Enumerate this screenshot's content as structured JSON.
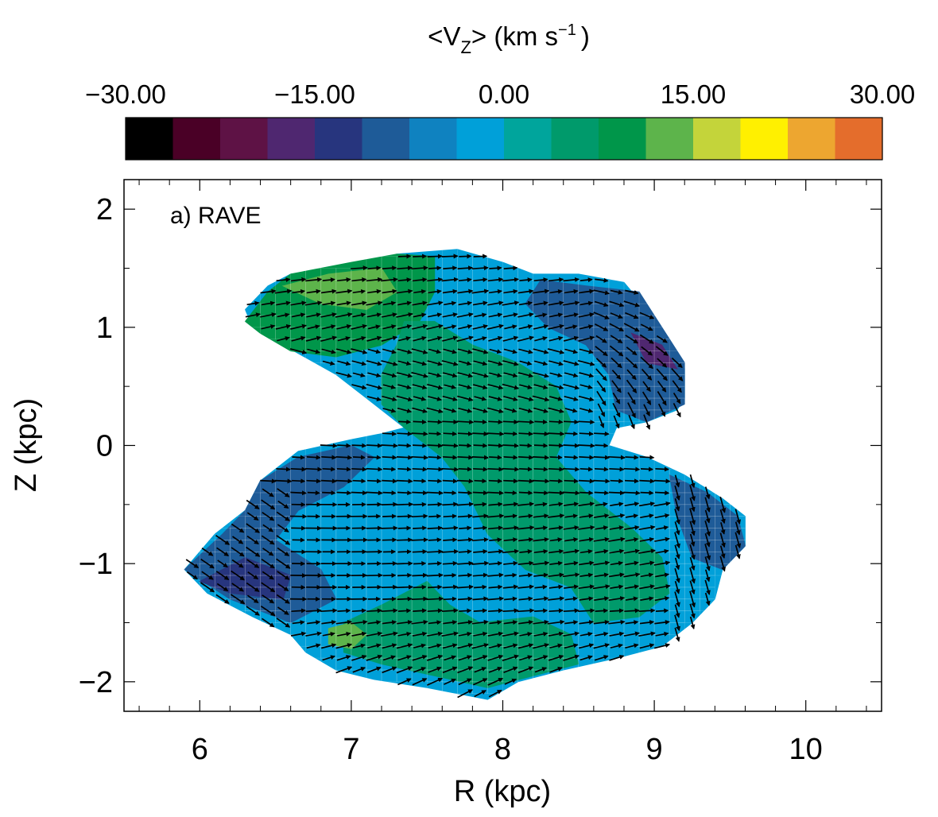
{
  "chart_data": {
    "type": "heatmap",
    "title": "",
    "panel_label": "a) RAVE",
    "xlabel": "R (kpc)",
    "ylabel": "Z (kpc)",
    "xlim": [
      5.5,
      10.5
    ],
    "ylim": [
      -2.25,
      2.25
    ],
    "xticks": [
      6,
      7,
      8,
      9,
      10
    ],
    "xtick_labels": [
      "6",
      "7",
      "8",
      "9",
      "10"
    ],
    "yticks": [
      2,
      1,
      0,
      -1,
      -2
    ],
    "ytick_labels": [
      "2",
      "1",
      "0",
      "−1",
      "−2"
    ],
    "colorbar": {
      "label_main": "<V",
      "label_sub": "Z",
      "label_rest": "> (km s",
      "label_sup": "−1",
      "label_close": ")",
      "vmin": -30,
      "vmax": 30,
      "tick_values": [
        -30,
        -15,
        0,
        15,
        30
      ],
      "tick_labels": [
        "−30.00",
        "−15.00",
        "0.00",
        "15.00",
        "30.00"
      ],
      "colors": [
        "#000000",
        "#4a0026",
        "#5e1245",
        "#4f2770",
        "#27357e",
        "#1e5b98",
        "#0f82c0",
        "#00a0d9",
        "#00a59c",
        "#009a6b",
        "#00964a",
        "#5db44b",
        "#c4d43a",
        "#fff000",
        "#eda630",
        "#e46d2c"
      ]
    },
    "grid": false,
    "arrow_field": "mean velocity vectors (V_R, V_Z) on a 0.1 kpc grid; arrows mostly point to +R with tilts varying by region",
    "regions": [
      {
        "name": "envelope",
        "value": -2,
        "polygon": [
          [
            6.3,
            1.15
          ],
          [
            6.45,
            1.35
          ],
          [
            6.6,
            1.45
          ],
          [
            7.0,
            1.5
          ],
          [
            7.3,
            1.62
          ],
          [
            7.7,
            1.66
          ],
          [
            8.0,
            1.55
          ],
          [
            8.2,
            1.45
          ],
          [
            8.5,
            1.45
          ],
          [
            8.8,
            1.38
          ],
          [
            8.95,
            1.15
          ],
          [
            9.1,
            0.9
          ],
          [
            9.2,
            0.65
          ],
          [
            9.2,
            0.4
          ],
          [
            9.15,
            0.3
          ],
          [
            8.95,
            0.2
          ],
          [
            8.75,
            0.15
          ],
          [
            8.7,
            0.0
          ],
          [
            8.95,
            -0.1
          ],
          [
            9.2,
            -0.25
          ],
          [
            9.45,
            -0.45
          ],
          [
            9.6,
            -0.6
          ],
          [
            9.6,
            -0.85
          ],
          [
            9.45,
            -1.05
          ],
          [
            9.4,
            -1.3
          ],
          [
            9.25,
            -1.5
          ],
          [
            9.05,
            -1.7
          ],
          [
            8.75,
            -1.8
          ],
          [
            8.4,
            -1.9
          ],
          [
            8.1,
            -2.0
          ],
          [
            7.9,
            -2.15
          ],
          [
            7.5,
            -2.05
          ],
          [
            7.15,
            -1.98
          ],
          [
            6.9,
            -1.9
          ],
          [
            6.7,
            -1.75
          ],
          [
            6.6,
            -1.6
          ],
          [
            6.35,
            -1.45
          ],
          [
            6.05,
            -1.25
          ],
          [
            5.9,
            -1.05
          ],
          [
            6.1,
            -0.75
          ],
          [
            6.3,
            -0.55
          ],
          [
            6.4,
            -0.3
          ],
          [
            6.65,
            -0.05
          ],
          [
            7.0,
            0.05
          ],
          [
            7.2,
            0.1
          ],
          [
            7.35,
            0.15
          ],
          [
            7.1,
            0.4
          ],
          [
            6.9,
            0.6
          ],
          [
            6.55,
            0.85
          ],
          [
            6.35,
            1.0
          ]
        ]
      },
      {
        "name": "upper-left-green",
        "value": 8,
        "polygon": [
          [
            6.3,
            1.05
          ],
          [
            6.45,
            1.3
          ],
          [
            6.6,
            1.45
          ],
          [
            7.0,
            1.55
          ],
          [
            7.3,
            1.62
          ],
          [
            7.55,
            1.6
          ],
          [
            7.55,
            1.3
          ],
          [
            7.45,
            1.05
          ],
          [
            7.2,
            0.85
          ],
          [
            6.9,
            0.75
          ],
          [
            6.6,
            0.8
          ],
          [
            6.4,
            0.95
          ]
        ]
      },
      {
        "name": "upper-left-darkgreen",
        "value": 12,
        "polygon": [
          [
            6.55,
            1.35
          ],
          [
            6.85,
            1.45
          ],
          [
            7.2,
            1.5
          ],
          [
            7.3,
            1.3
          ],
          [
            7.1,
            1.15
          ],
          [
            6.8,
            1.2
          ]
        ]
      },
      {
        "name": "central-green-band",
        "value": 6,
        "polygon": [
          [
            7.35,
            1.05
          ],
          [
            7.55,
            1.05
          ],
          [
            7.8,
            0.85
          ],
          [
            8.1,
            0.7
          ],
          [
            8.35,
            0.5
          ],
          [
            8.45,
            0.2
          ],
          [
            8.35,
            -0.1
          ],
          [
            8.55,
            -0.4
          ],
          [
            8.85,
            -0.7
          ],
          [
            9.05,
            -0.95
          ],
          [
            9.1,
            -1.25
          ],
          [
            8.9,
            -1.45
          ],
          [
            8.6,
            -1.5
          ],
          [
            8.45,
            -1.2
          ],
          [
            8.15,
            -1.05
          ],
          [
            7.9,
            -0.75
          ],
          [
            7.75,
            -0.35
          ],
          [
            7.6,
            -0.1
          ],
          [
            7.35,
            0.15
          ],
          [
            7.2,
            0.35
          ],
          [
            7.2,
            0.6
          ],
          [
            7.3,
            0.85
          ]
        ]
      },
      {
        "name": "lower-green-blob",
        "value": 7,
        "polygon": [
          [
            6.95,
            -1.5
          ],
          [
            7.2,
            -1.35
          ],
          [
            7.5,
            -1.15
          ],
          [
            7.65,
            -1.35
          ],
          [
            7.85,
            -1.5
          ],
          [
            8.2,
            -1.45
          ],
          [
            8.45,
            -1.6
          ],
          [
            8.5,
            -1.85
          ],
          [
            8.2,
            -1.95
          ],
          [
            7.9,
            -2.05
          ],
          [
            7.55,
            -1.95
          ],
          [
            7.2,
            -1.85
          ],
          [
            6.95,
            -1.75
          ]
        ]
      },
      {
        "name": "lower-darkgreen-spot",
        "value": 12,
        "polygon": [
          [
            6.85,
            -1.55
          ],
          [
            7.0,
            -1.5
          ],
          [
            7.1,
            -1.6
          ],
          [
            7.0,
            -1.72
          ],
          [
            6.85,
            -1.68
          ]
        ]
      },
      {
        "name": "upper-right-blue",
        "value": -11,
        "polygon": [
          [
            8.9,
            1.3
          ],
          [
            9.05,
            1.0
          ],
          [
            9.2,
            0.7
          ],
          [
            9.2,
            0.35
          ],
          [
            8.95,
            0.2
          ],
          [
            8.75,
            0.3
          ],
          [
            8.7,
            0.6
          ],
          [
            8.55,
            0.85
          ],
          [
            8.3,
            1.0
          ],
          [
            8.15,
            1.2
          ],
          [
            8.25,
            1.4
          ],
          [
            8.55,
            1.35
          ]
        ]
      },
      {
        "name": "upper-right-purple",
        "value": -18,
        "polygon": [
          [
            8.85,
            0.95
          ],
          [
            9.05,
            0.85
          ],
          [
            9.15,
            0.65
          ],
          [
            8.95,
            0.7
          ]
        ]
      },
      {
        "name": "left-lower-blue",
        "value": -11,
        "polygon": [
          [
            5.9,
            -1.05
          ],
          [
            6.15,
            -0.75
          ],
          [
            6.3,
            -0.55
          ],
          [
            6.4,
            -0.3
          ],
          [
            6.65,
            -0.1
          ],
          [
            7.0,
            0.0
          ],
          [
            7.15,
            -0.1
          ],
          [
            6.95,
            -0.35
          ],
          [
            6.65,
            -0.55
          ],
          [
            6.5,
            -0.8
          ],
          [
            6.8,
            -1.05
          ],
          [
            6.9,
            -1.3
          ],
          [
            6.6,
            -1.5
          ],
          [
            6.2,
            -1.3
          ]
        ]
      },
      {
        "name": "left-lower-darkblue",
        "value": -15,
        "polygon": [
          [
            6.0,
            -1.15
          ],
          [
            6.3,
            -0.95
          ],
          [
            6.6,
            -1.1
          ],
          [
            6.55,
            -1.3
          ],
          [
            6.2,
            -1.25
          ]
        ]
      },
      {
        "name": "right-middle-blue",
        "value": -11,
        "polygon": [
          [
            9.1,
            -0.25
          ],
          [
            9.35,
            -0.4
          ],
          [
            9.55,
            -0.6
          ],
          [
            9.6,
            -0.85
          ],
          [
            9.45,
            -1.05
          ],
          [
            9.25,
            -0.95
          ],
          [
            9.15,
            -0.6
          ]
        ]
      }
    ]
  }
}
